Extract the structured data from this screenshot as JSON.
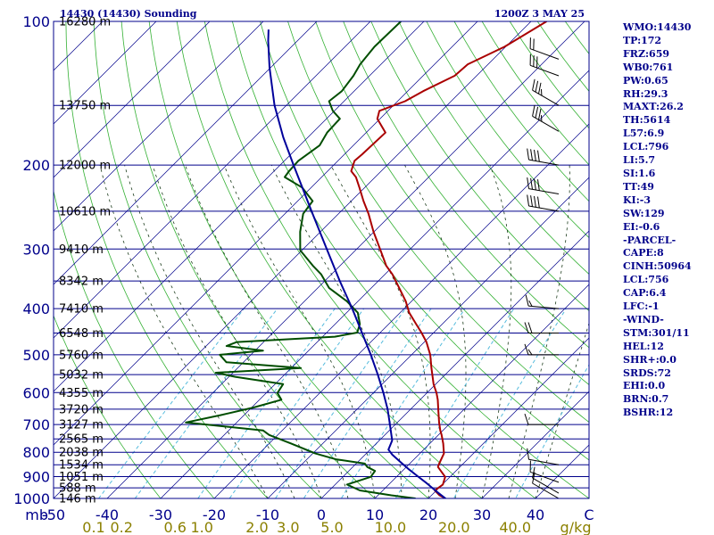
{
  "header": {
    "station": "14430 (14430) Sounding",
    "time": "1200Z  3 MAY 25"
  },
  "indices": [
    "WMO:14430",
    "TP:172",
    "FRZ:659",
    "WB0:761",
    "PW:0.65",
    "RH:29.3",
    "MAXT:26.2",
    "TH:5614",
    "L57:6.9",
    "LCL:796",
    "LI:5.7",
    "SI:1.6",
    "TT:49",
    "KI:-3",
    "SW:129",
    "EI:-0.6",
    "-PARCEL-",
    "CAPE:8",
    "CINH:50964",
    "LCL:756",
    "CAP:6.4",
    "LFC:-1",
    "-WIND-",
    "STM:301/11",
    "HEL:12",
    "SHR+:0.0",
    "SRDS:72",
    "EHI:0.0",
    "BRN:0.7",
    "BSHR:12"
  ],
  "chart_data": {
    "type": "line",
    "title": "14430 (14430) Sounding",
    "time": "1200Z  3 MAY 25",
    "y_axis": {
      "scale": "log",
      "range": [
        1000,
        100
      ],
      "unit": "mb",
      "tick_labels": [
        "100",
        "200",
        "300",
        "400",
        "500",
        "600",
        "700",
        "800",
        "900",
        "1000"
      ],
      "tick_values": [
        100,
        200,
        300,
        400,
        500,
        600,
        700,
        800,
        900,
        1000
      ]
    },
    "x_axis": {
      "range": [
        -50,
        50
      ],
      "unit": "C",
      "tick_labels": [
        "-50",
        "-40",
        "-30",
        "-20",
        "-10",
        "0",
        "10",
        "20",
        "30",
        "40",
        "C"
      ],
      "tick_values": [
        -50,
        -40,
        -30,
        -20,
        -10,
        0,
        10,
        20,
        30,
        40,
        50
      ],
      "skew": "45 degrees"
    },
    "mixing_ratio_labels": {
      "unit": "g/kg",
      "values": [
        "0.1",
        "0.2",
        "0.6",
        "1.0",
        "2.0",
        "3.0",
        "5.0",
        "10.0",
        "20.0",
        "40.0",
        "g/kg"
      ],
      "at_x": [
        -42.5,
        -37.3,
        -27.3,
        -22.3,
        -12.0,
        -6.2,
        2.0,
        12.9,
        24.8,
        36.2,
        47.5
      ]
    },
    "height_levels": [
      {
        "label": "16280 m",
        "p": 100
      },
      {
        "label": "13750 m",
        "p": 150
      },
      {
        "label": "12000 m",
        "p": 200
      },
      {
        "label": "10610 m",
        "p": 250
      },
      {
        "label": "9410 m",
        "p": 300
      },
      {
        "label": "8342 m",
        "p": 350
      },
      {
        "label": "7410 m",
        "p": 400
      },
      {
        "label": "6548 m",
        "p": 450
      },
      {
        "label": "5760 m",
        "p": 500
      },
      {
        "label": "5032 m",
        "p": 550
      },
      {
        "label": "4355 m",
        "p": 600
      },
      {
        "label": "3720 m",
        "p": 650
      },
      {
        "label": "3127 m",
        "p": 700
      },
      {
        "label": "2565 m",
        "p": 750
      },
      {
        "label": "2038 m",
        "p": 800
      },
      {
        "label": "1534 m",
        "p": 850
      },
      {
        "label": "1051 m",
        "p": 900
      },
      {
        "label": "588 m",
        "p": 950
      },
      {
        "label": "146 m",
        "p": 1000
      }
    ],
    "series": [
      {
        "key": "temperature",
        "color": "#aa0000",
        "points": [
          [
            1000,
            23.2
          ],
          [
            985,
            21.5
          ],
          [
            962,
            19.7
          ],
          [
            935,
            20.1
          ],
          [
            901,
            19.1
          ],
          [
            876,
            17.2
          ],
          [
            859,
            15.9
          ],
          [
            845,
            15.5
          ],
          [
            805,
            14.5
          ],
          [
            767,
            12.5
          ],
          [
            736,
            10.6
          ],
          [
            720,
            9.5
          ],
          [
            693,
            7.8
          ],
          [
            657,
            5.6
          ],
          [
            621,
            3.3
          ],
          [
            601,
            1.8
          ],
          [
            576,
            -0.4
          ],
          [
            533,
            -3.8
          ],
          [
            500,
            -6.5
          ],
          [
            470,
            -9.6
          ],
          [
            449,
            -12.3
          ],
          [
            431,
            -14.9
          ],
          [
            408,
            -18.3
          ],
          [
            386,
            -21.1
          ],
          [
            362,
            -24.8
          ],
          [
            339,
            -28.6
          ],
          [
            325,
            -31.4
          ],
          [
            302,
            -35.3
          ],
          [
            276,
            -40.1
          ],
          [
            253,
            -44.4
          ],
          [
            238,
            -47.7
          ],
          [
            223,
            -51.0
          ],
          [
            212,
            -53.6
          ],
          [
            206,
            -55.6
          ],
          [
            196,
            -56.9
          ],
          [
            190,
            -56.7
          ],
          [
            171,
            -56.4
          ],
          [
            160,
            -60.5
          ],
          [
            154,
            -61.6
          ],
          [
            147,
            -58.6
          ],
          [
            140,
            -57.1
          ],
          [
            130,
            -54.1
          ],
          [
            123,
            -53.8
          ],
          [
            113,
            -50.2
          ],
          [
            100,
            -47.1
          ]
        ]
      },
      {
        "key": "dewpoint",
        "color": "#004d00",
        "points": [
          [
            1000,
            17.6
          ],
          [
            985,
            12.5
          ],
          [
            962,
            5.7
          ],
          [
            935,
            2.2
          ],
          [
            901,
            5.2
          ],
          [
            876,
            4.9
          ],
          [
            859,
            2.7
          ],
          [
            845,
            1.6
          ],
          [
            828,
            -4.6
          ],
          [
            805,
            -9.5
          ],
          [
            767,
            -15.9
          ],
          [
            736,
            -21.6
          ],
          [
            720,
            -23.6
          ],
          [
            693,
            -39.5
          ],
          [
            669,
            -34.4
          ],
          [
            645,
            -29.7
          ],
          [
            621,
            -25.9
          ],
          [
            601,
            -27.9
          ],
          [
            576,
            -28.5
          ],
          [
            556,
            -38.8
          ],
          [
            545,
            -43.2
          ],
          [
            533,
            -28.2
          ],
          [
            518,
            -43.2
          ],
          [
            500,
            -45.8
          ],
          [
            490,
            -38.5
          ],
          [
            479,
            -46.2
          ],
          [
            470,
            -45.0
          ],
          [
            458,
            -27.7
          ],
          [
            449,
            -24.3
          ],
          [
            431,
            -25.4
          ],
          [
            408,
            -27.9
          ],
          [
            386,
            -32.1
          ],
          [
            362,
            -37.9
          ],
          [
            339,
            -41.9
          ],
          [
            325,
            -45.1
          ],
          [
            302,
            -50.3
          ],
          [
            276,
            -53.8
          ],
          [
            253,
            -56.6
          ],
          [
            238,
            -57.2
          ],
          [
            223,
            -61.7
          ],
          [
            212,
            -66.9
          ],
          [
            206,
            -67.2
          ],
          [
            196,
            -67.4
          ],
          [
            182,
            -66.3
          ],
          [
            171,
            -67.3
          ],
          [
            160,
            -67.5
          ],
          [
            154,
            -70.3
          ],
          [
            147,
            -72.8
          ],
          [
            140,
            -72.3
          ],
          [
            130,
            -73.0
          ],
          [
            123,
            -73.9
          ],
          [
            113,
            -74.5
          ],
          [
            100,
            -74.3
          ]
        ]
      },
      {
        "key": "parcel",
        "color": "#00009b",
        "points": [
          [
            1000,
            23.2
          ],
          [
            980,
            21.4
          ],
          [
            960,
            19.6
          ],
          [
            930,
            16.9
          ],
          [
            900,
            14.0
          ],
          [
            870,
            11.0
          ],
          [
            840,
            8.1
          ],
          [
            810,
            5.1
          ],
          [
            790,
            3.4
          ],
          [
            756,
            2.4
          ],
          [
            700,
            -1.0
          ],
          [
            650,
            -4.3
          ],
          [
            600,
            -8.2
          ],
          [
            550,
            -12.6
          ],
          [
            500,
            -17.6
          ],
          [
            450,
            -23.3
          ],
          [
            400,
            -29.7
          ],
          [
            350,
            -37.2
          ],
          [
            300,
            -45.6
          ],
          [
            250,
            -55.5
          ],
          [
            200,
            -67.5
          ],
          [
            175,
            -74.6
          ],
          [
            150,
            -82.2
          ],
          [
            125,
            -90.2
          ],
          [
            110,
            -95.4
          ],
          [
            104,
            -97.5
          ]
        ]
      }
    ],
    "wind_barbs": [
      {
        "p": 1000,
        "dir": 300,
        "kt": 10
      },
      {
        "p": 975,
        "dir": 300,
        "kt": 10
      },
      {
        "p": 925,
        "dir": 290,
        "kt": 10
      },
      {
        "p": 850,
        "dir": 280,
        "kt": 10
      },
      {
        "p": 700,
        "dir": 270,
        "kt": 10
      },
      {
        "p": 500,
        "dir": 270,
        "kt": 15
      },
      {
        "p": 450,
        "dir": 270,
        "kt": 20
      },
      {
        "p": 400,
        "dir": 275,
        "kt": 15
      },
      {
        "p": 250,
        "dir": 280,
        "kt": 40
      },
      {
        "p": 230,
        "dir": 280,
        "kt": 40
      },
      {
        "p": 200,
        "dir": 280,
        "kt": 40
      },
      {
        "p": 170,
        "dir": 300,
        "kt": 35
      },
      {
        "p": 150,
        "dir": 300,
        "kt": 35
      },
      {
        "p": 130,
        "dir": 290,
        "kt": 30
      },
      {
        "p": 120,
        "dir": 290,
        "kt": 20
      },
      {
        "p": 100,
        "dir": 290,
        "kt": 10
      }
    ]
  }
}
